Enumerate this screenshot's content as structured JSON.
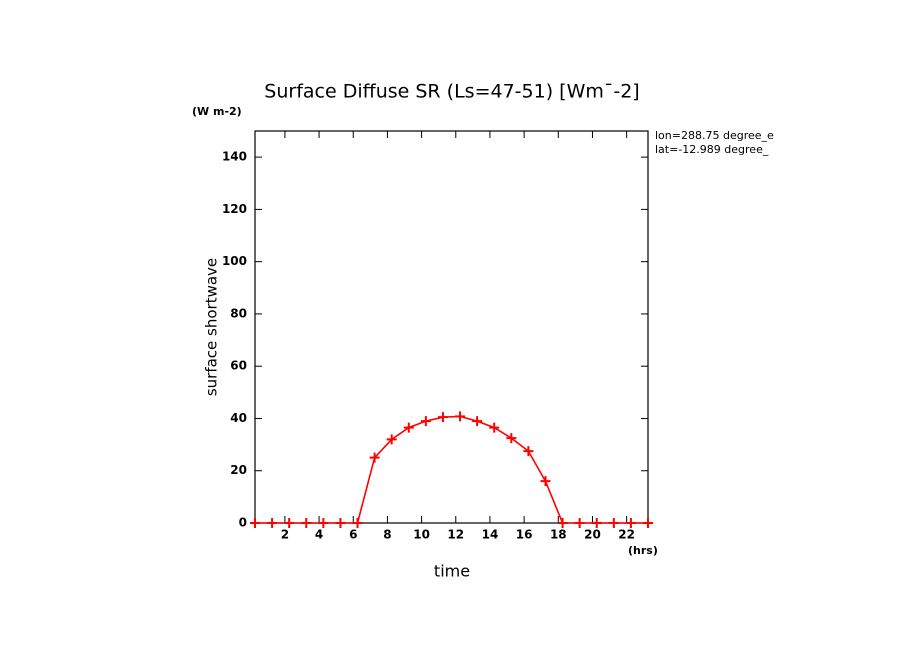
{
  "chart_data": {
    "type": "line",
    "title": "Surface Diffuse SR (Ls=47-51) [Wm¯-2]",
    "units": "(W m-2)",
    "annotations": [
      "lon=288.75 degree_e",
      "lat=-12.989 degree_"
    ],
    "x_label": "time",
    "x_units": "(hrs)",
    "y_label": "surface shortwave",
    "x": [
      0.25,
      1.25,
      2.25,
      3.25,
      4.25,
      5.25,
      6.25,
      7.25,
      8.25,
      9.25,
      10.25,
      11.25,
      12.25,
      13.25,
      14.25,
      15.25,
      16.25,
      17.25,
      18.25,
      19.25,
      20.25,
      21.25,
      22.25,
      23.25
    ],
    "series": [
      {
        "name": "surface shortwave",
        "color": "#ff0000",
        "values": [
          0,
          0,
          0,
          0,
          0,
          0,
          0,
          25,
          32,
          36.5,
          39,
          40.5,
          40.8,
          39,
          36.5,
          32.5,
          27.5,
          16,
          0,
          0,
          0,
          0,
          0,
          0
        ]
      }
    ],
    "xlim": [
      0.25,
      23.25
    ],
    "xticks": [
      2,
      4,
      6,
      8,
      10,
      12,
      14,
      16,
      18,
      20,
      22
    ],
    "ylim": [
      0,
      150
    ],
    "yticks": [
      0,
      20,
      40,
      60,
      80,
      100,
      120,
      140
    ]
  }
}
